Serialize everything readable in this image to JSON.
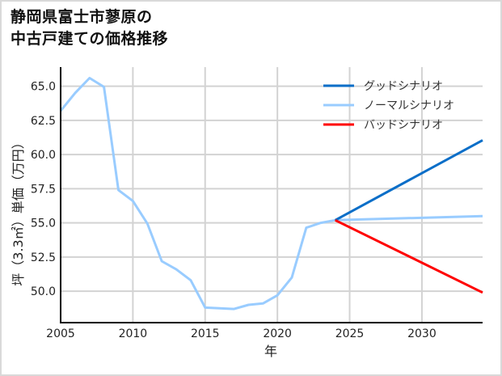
{
  "title": "静岡県富士市蓼原の\n中古戸建ての価格推移",
  "chart_data": {
    "type": "line",
    "title": "静岡県富士市蓼原の中古戸建ての価格推移",
    "xlabel": "年",
    "ylabel": "坪（3.3㎡）単価（万円）",
    "xlim": [
      2005,
      2034.2
    ],
    "ylim": [
      47.7,
      66.4
    ],
    "xticks": [
      2005,
      2010,
      2015,
      2020,
      2025,
      2030
    ],
    "yticks": [
      50.0,
      52.5,
      55.0,
      57.5,
      60.0,
      62.5,
      65.0
    ],
    "ytick_labels": [
      "50.0",
      "52.5",
      "55.0",
      "57.5",
      "60.0",
      "62.5",
      "65.0"
    ],
    "grid": true,
    "legend_position": "upper right",
    "series": [
      {
        "name": "グッドシナリオ",
        "color": "#0a6ec8",
        "x": [
          2024,
          2034.2
        ],
        "y": [
          55.2,
          61.05
        ]
      },
      {
        "name": "ノーマルシナリオ",
        "color": "#99ccff",
        "x": [
          2005,
          2006,
          2007,
          2008,
          2009,
          2010,
          2011,
          2012,
          2013,
          2014,
          2015,
          2016,
          2017,
          2018,
          2019,
          2020,
          2021,
          2022,
          2023,
          2024,
          2034.2
        ],
        "y": [
          63.2,
          64.5,
          65.6,
          64.95,
          57.4,
          56.6,
          54.95,
          52.2,
          51.6,
          50.8,
          48.8,
          48.75,
          48.7,
          49.0,
          49.1,
          49.7,
          51.0,
          54.65,
          55.0,
          55.2,
          55.5
        ]
      },
      {
        "name": "バッドシナリオ",
        "color": "#ff0000",
        "x": [
          2024,
          2034.2
        ],
        "y": [
          55.2,
          49.9
        ]
      }
    ]
  }
}
